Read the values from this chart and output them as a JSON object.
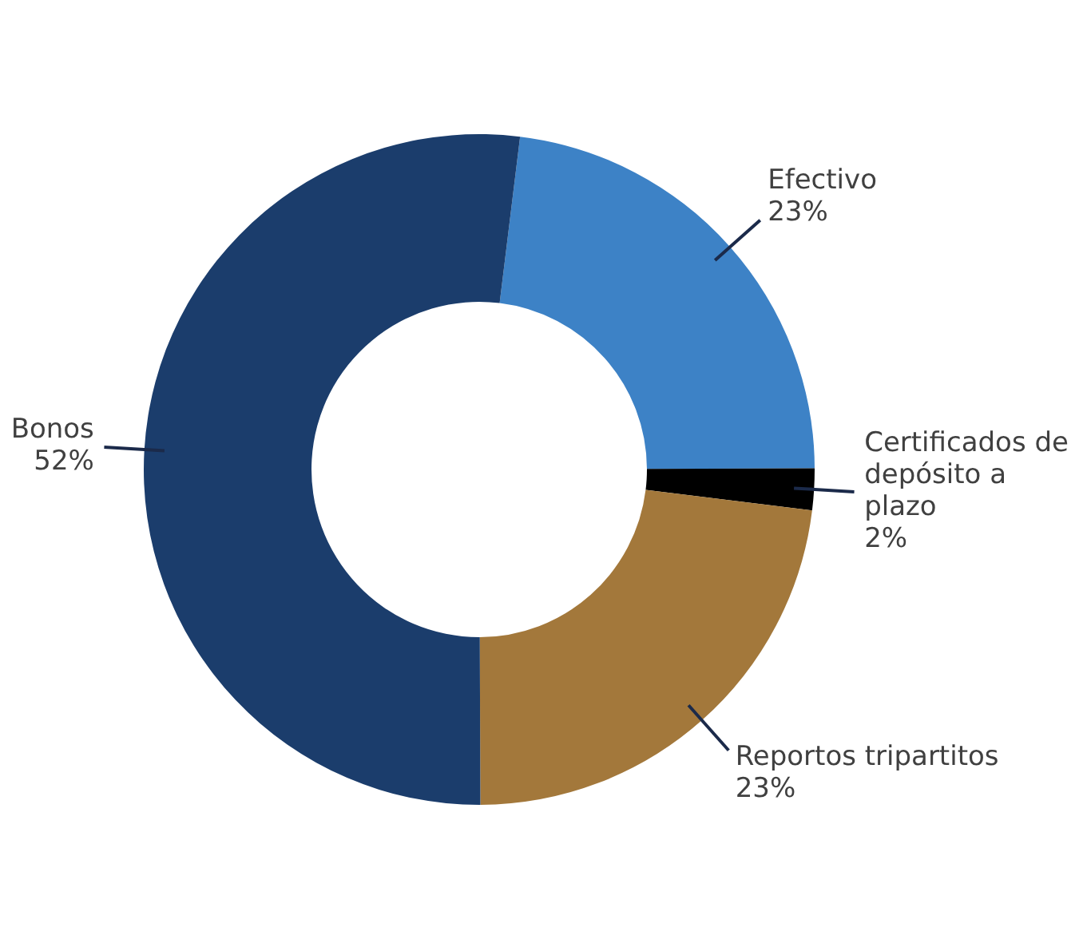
{
  "chart_data": {
    "type": "donut",
    "categories": [
      "Efectivo",
      "Certificados de depósito a plazo",
      "Reportos tripartitos",
      "Bonos"
    ],
    "values": [
      23,
      2,
      23,
      52
    ],
    "colors": [
      "#3d82c6",
      "#000000",
      "#a3783b",
      "#1b3d6c"
    ],
    "value_labels": [
      "23%",
      "2%",
      "23%",
      "52%"
    ],
    "legend": false
  }
}
